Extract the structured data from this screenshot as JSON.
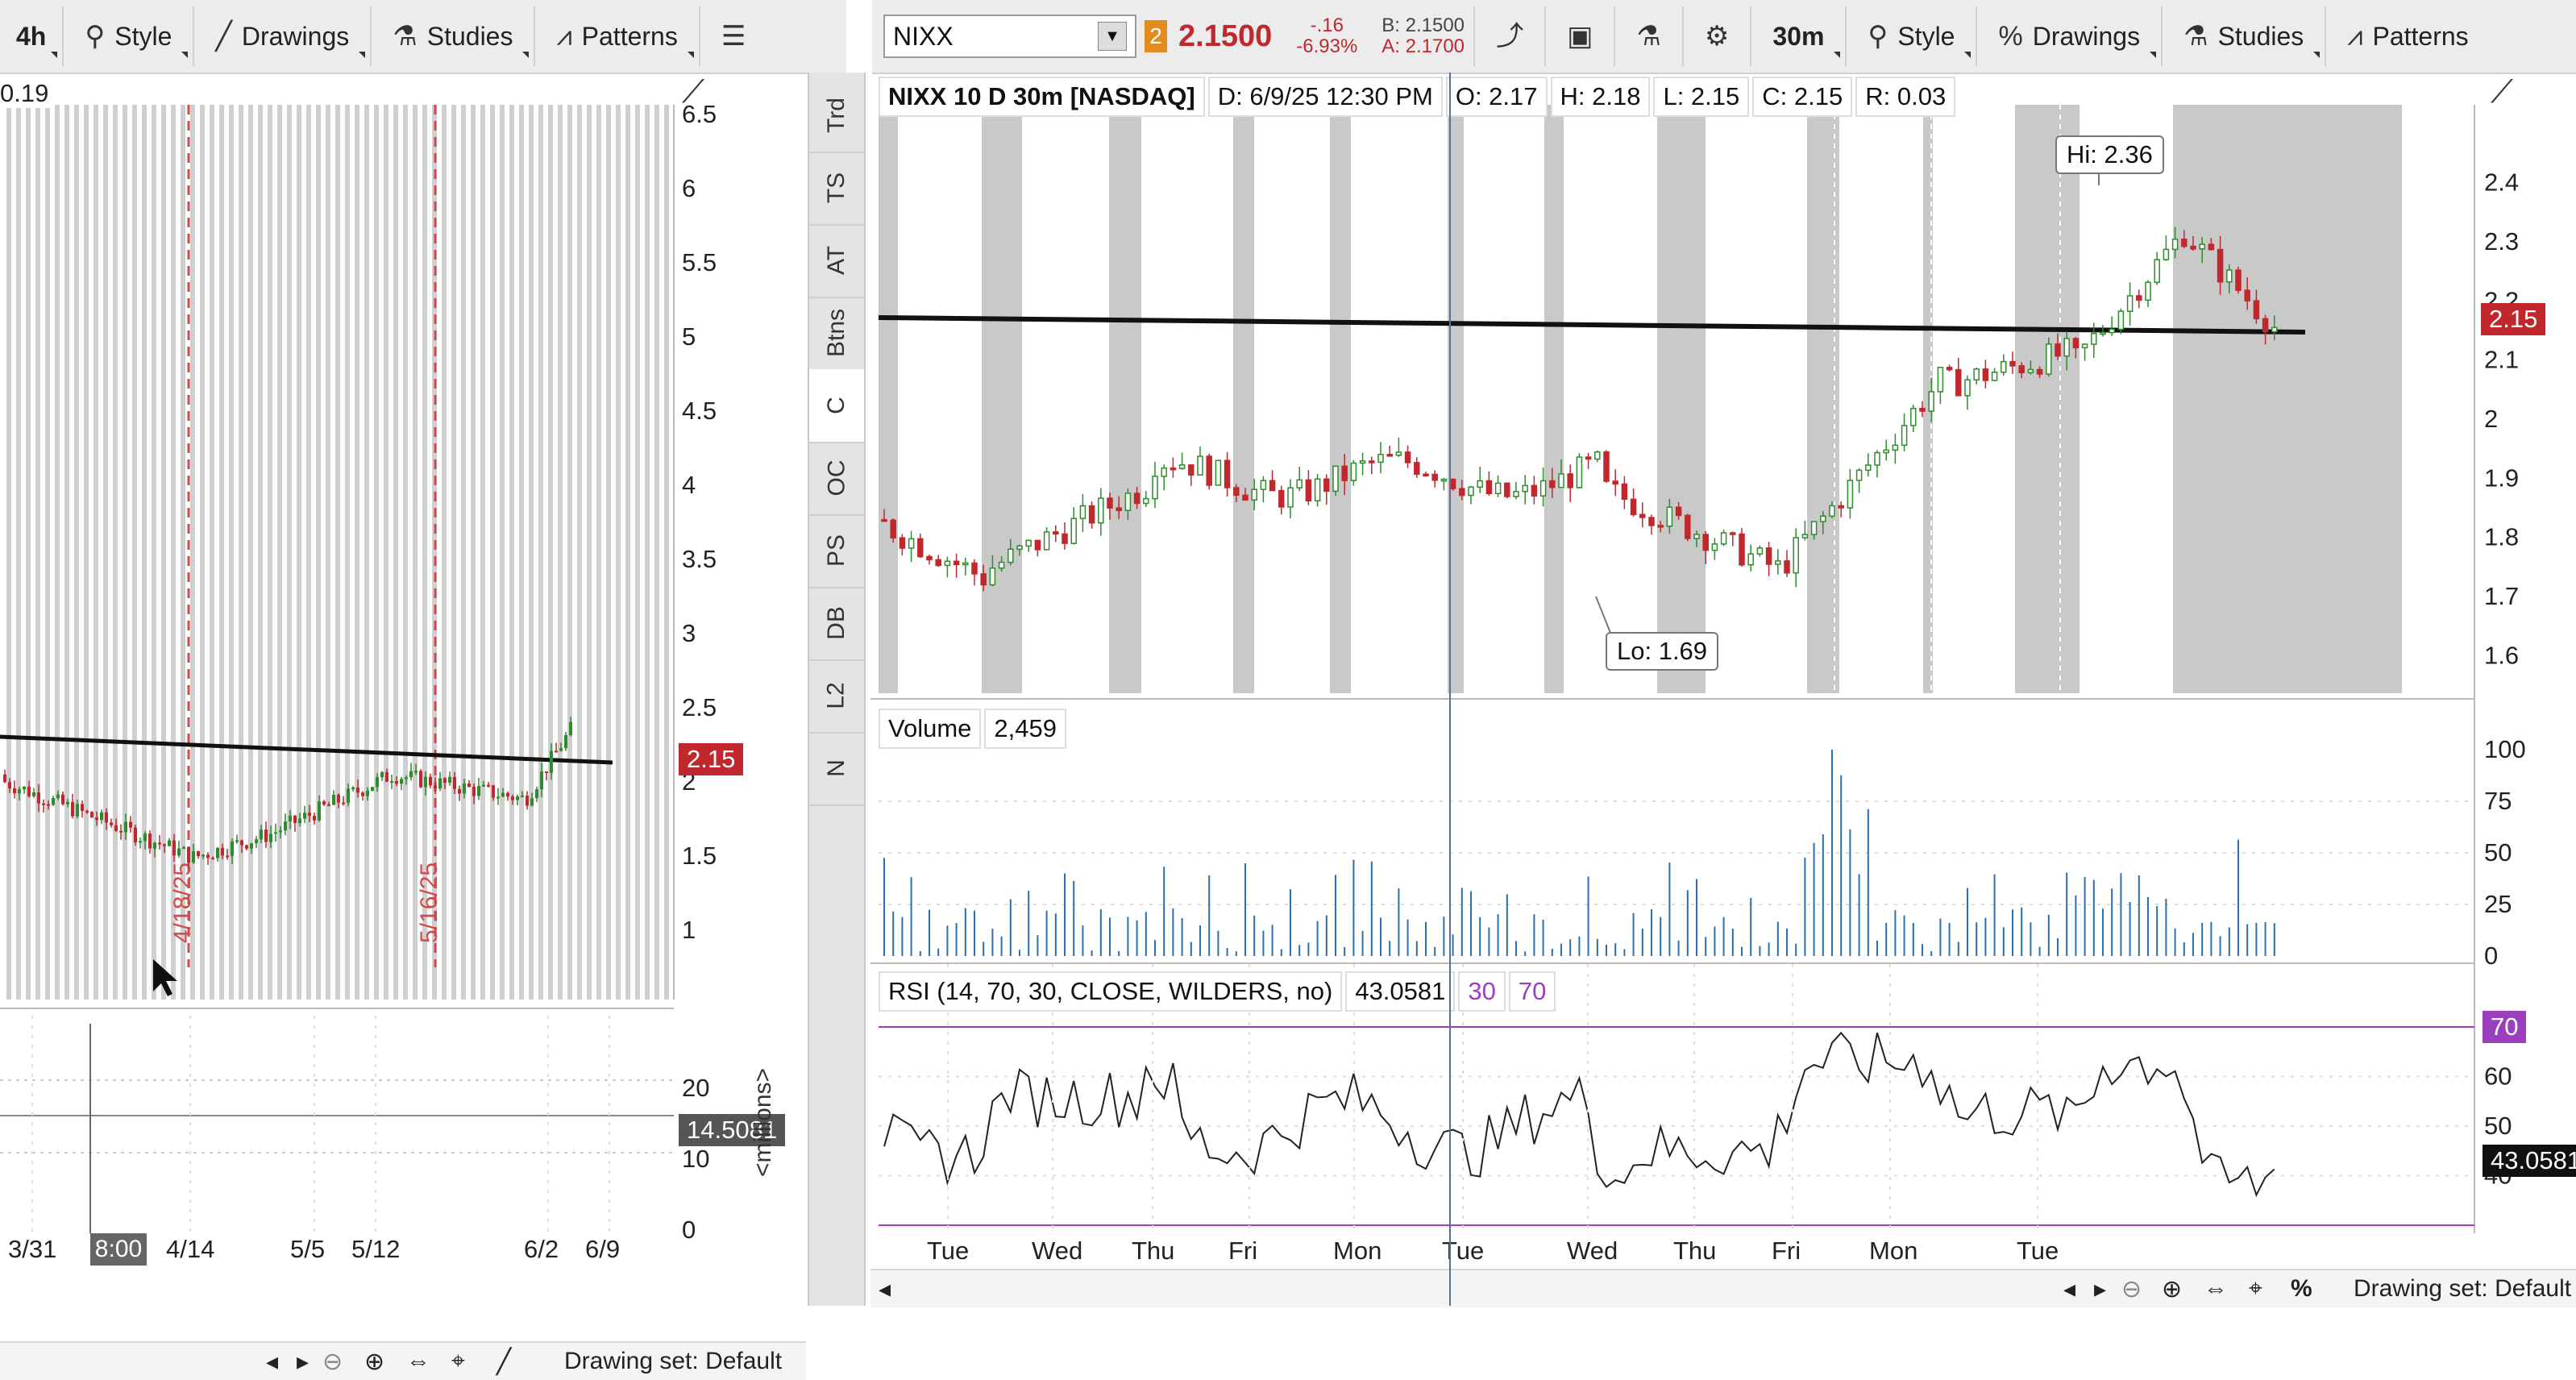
{
  "left_toolbar": {
    "timeframe": "4h",
    "style_label": "Style",
    "drawings_label": "Drawings",
    "studies_label": "Studies",
    "patterns_label": "Patterns"
  },
  "right_toolbar": {
    "symbol": "NIXX",
    "link_badge": "2",
    "last_price": "2.1500",
    "change_abs": "-.16",
    "change_pct": "-6.93%",
    "bid": "B: 2.1500",
    "ask": "A: 2.1700",
    "timeframe": "30m",
    "style_label": "Style",
    "drawings_label": "Drawings",
    "studies_label": "Studies",
    "patterns_label": "Patterns"
  },
  "left_chart": {
    "top_value": "0.19",
    "price_ticks": [
      "6.5",
      "6",
      "5.5",
      "5",
      "4.5",
      "4",
      "3.5",
      "3",
      "2.5",
      "2",
      "1.5",
      "1"
    ],
    "price_tag": "2.15",
    "vertical_markers": [
      "4/18/25",
      "5/16/25"
    ],
    "lower_ticks": [
      "20",
      "10",
      "0"
    ],
    "lower_value_tag": "14.5081",
    "lower_unit": "<millions>",
    "date_ticks": [
      "3/31",
      "4/14",
      "5/5",
      "5/12",
      "6/2",
      "6/9"
    ],
    "time_cursor": "8:00",
    "drawing_set": "Drawing set: Default"
  },
  "side_tabs": [
    "Trd",
    "TS",
    "AT",
    "Btns",
    "C",
    "OC",
    "PS",
    "DB",
    "L2",
    "N"
  ],
  "right_chart": {
    "title": "NIXX 10 D 30m [NASDAQ]",
    "ohlc": {
      "date": "D: 6/9/25 12:30 PM",
      "open": "O: 2.17",
      "high": "H: 2.18",
      "low": "L: 2.15",
      "close": "C: 2.15",
      "range": "R: 0.03"
    },
    "price_ticks": [
      "2.4",
      "2.3",
      "2.2",
      "2.1",
      "2",
      "1.9",
      "1.8",
      "1.7",
      "1.6"
    ],
    "price_tag": "2.15",
    "hi_label": "Hi: 2.36",
    "lo_label": "Lo: 1.69",
    "volume_label": "Volume",
    "volume_value": "2,459",
    "volume_ticks": [
      "100",
      "75",
      "50",
      "25",
      "0"
    ],
    "rsi_label": "RSI (14, 70, 30, CLOSE, WILDERS, no)",
    "rsi_value": "43.0581",
    "rsi_low": "30",
    "rsi_high": "70",
    "rsi_ticks": [
      "60",
      "50",
      "40"
    ],
    "rsi_tag_high": "70",
    "rsi_tag_value": "43.0581",
    "day_ticks": [
      "Tue",
      "Wed",
      "Thu",
      "Fri",
      "Mon",
      "Tue",
      "Wed",
      "Thu",
      "Fri",
      "Mon",
      "Tue"
    ],
    "drawing_set": "Drawing set: Default"
  },
  "colors": {
    "up": "#2e8b2e",
    "down": "#c0282d",
    "tag_red": "#c0282d",
    "rsi_line": "#9b3fbf",
    "volume": "#2a6fb0",
    "shade": "#c9c9c9"
  }
}
